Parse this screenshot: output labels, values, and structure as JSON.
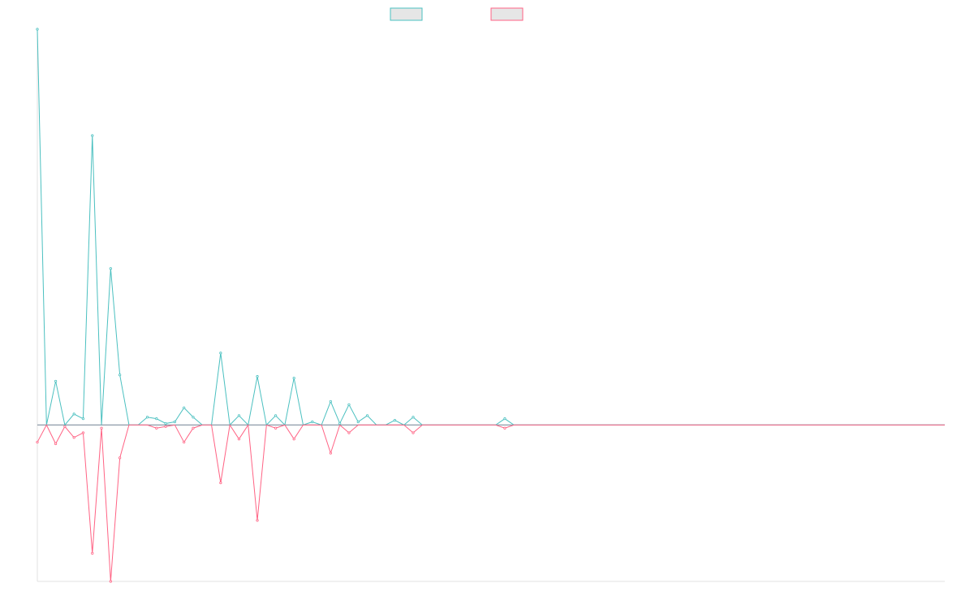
{
  "chart_data": {
    "type": "line",
    "title": "",
    "xlabel": "",
    "ylabel": "",
    "grid": false,
    "legend_placement": "top-center",
    "x_count": 100,
    "ylim": [
      -100,
      253
    ],
    "colors": {
      "series_a": "#4bc0c0",
      "series_b": "#ff6384",
      "zero_line": "#8e9aa8",
      "axis": "#e0e0e0",
      "legend_fill": "#e6e6e6"
    },
    "series": [
      {
        "key": "series_a",
        "label": "",
        "color": "#4bc0c0",
        "points": [
          [
            0,
            253
          ],
          [
            1,
            0
          ],
          [
            2,
            28
          ],
          [
            3,
            0
          ],
          [
            4,
            7
          ],
          [
            5,
            4
          ],
          [
            6,
            185
          ],
          [
            7,
            0
          ],
          [
            8,
            100
          ],
          [
            9,
            32
          ],
          [
            10,
            0
          ],
          [
            11,
            0
          ],
          [
            12,
            5
          ],
          [
            13,
            4
          ],
          [
            14,
            1
          ],
          [
            15,
            2
          ],
          [
            16,
            11
          ],
          [
            17,
            5
          ],
          [
            18,
            0
          ],
          [
            19,
            0
          ],
          [
            20,
            46
          ],
          [
            21,
            0
          ],
          [
            22,
            6
          ],
          [
            23,
            0
          ],
          [
            24,
            31
          ],
          [
            25,
            0
          ],
          [
            26,
            6
          ],
          [
            27,
            0
          ],
          [
            28,
            30
          ],
          [
            29,
            0
          ],
          [
            30,
            2
          ],
          [
            31,
            0
          ],
          [
            32,
            15
          ],
          [
            33,
            1
          ],
          [
            34,
            13
          ],
          [
            35,
            2
          ],
          [
            36,
            6
          ],
          [
            37,
            0
          ],
          [
            38,
            0
          ],
          [
            39,
            3
          ],
          [
            40,
            0
          ],
          [
            41,
            5
          ],
          [
            42,
            0
          ],
          [
            43,
            0
          ],
          [
            44,
            0
          ],
          [
            45,
            0
          ],
          [
            46,
            0
          ],
          [
            47,
            0
          ],
          [
            48,
            0
          ],
          [
            49,
            0
          ],
          [
            50,
            0
          ],
          [
            51,
            4
          ],
          [
            52,
            0
          ],
          [
            53,
            0
          ],
          [
            54,
            0
          ],
          [
            55,
            0
          ],
          [
            56,
            0
          ],
          [
            57,
            0
          ],
          [
            58,
            0
          ],
          [
            59,
            0
          ],
          [
            60,
            0
          ],
          [
            61,
            0
          ],
          [
            62,
            0
          ],
          [
            63,
            0
          ],
          [
            64,
            0
          ],
          [
            65,
            0
          ],
          [
            66,
            0
          ],
          [
            67,
            0
          ],
          [
            68,
            0
          ],
          [
            69,
            0
          ],
          [
            70,
            0
          ],
          [
            71,
            0
          ],
          [
            72,
            0
          ],
          [
            73,
            0
          ],
          [
            74,
            0
          ],
          [
            75,
            0
          ],
          [
            76,
            0
          ],
          [
            77,
            0
          ],
          [
            78,
            0
          ],
          [
            79,
            0
          ],
          [
            80,
            0
          ],
          [
            81,
            0
          ],
          [
            82,
            0
          ],
          [
            83,
            0
          ],
          [
            84,
            0
          ],
          [
            85,
            0
          ],
          [
            86,
            0
          ],
          [
            87,
            0
          ],
          [
            88,
            0
          ],
          [
            89,
            0
          ],
          [
            90,
            0
          ],
          [
            91,
            0
          ],
          [
            92,
            0
          ],
          [
            93,
            0
          ],
          [
            94,
            0
          ],
          [
            95,
            0
          ],
          [
            96,
            0
          ],
          [
            97,
            0
          ],
          [
            98,
            0
          ],
          [
            99,
            0
          ]
        ]
      },
      {
        "key": "series_b",
        "label": "",
        "color": "#ff6384",
        "points": [
          [
            0,
            -11
          ],
          [
            1,
            0
          ],
          [
            2,
            -12
          ],
          [
            3,
            -1
          ],
          [
            4,
            -8
          ],
          [
            5,
            -5
          ],
          [
            6,
            -82
          ],
          [
            7,
            -2
          ],
          [
            8,
            -100
          ],
          [
            9,
            -21
          ],
          [
            10,
            0
          ],
          [
            11,
            0
          ],
          [
            12,
            0
          ],
          [
            13,
            -2
          ],
          [
            14,
            -1
          ],
          [
            15,
            0
          ],
          [
            16,
            -11
          ],
          [
            17,
            -2
          ],
          [
            18,
            0
          ],
          [
            19,
            0
          ],
          [
            20,
            -37
          ],
          [
            21,
            0
          ],
          [
            22,
            -9
          ],
          [
            23,
            0
          ],
          [
            24,
            -61
          ],
          [
            25,
            0
          ],
          [
            26,
            -2
          ],
          [
            27,
            0
          ],
          [
            28,
            -9
          ],
          [
            29,
            0
          ],
          [
            30,
            0
          ],
          [
            31,
            0
          ],
          [
            32,
            -18
          ],
          [
            33,
            0
          ],
          [
            34,
            -5
          ],
          [
            35,
            0
          ],
          [
            36,
            0
          ],
          [
            37,
            0
          ],
          [
            38,
            0
          ],
          [
            39,
            0
          ],
          [
            40,
            0
          ],
          [
            41,
            -5
          ],
          [
            42,
            0
          ],
          [
            43,
            0
          ],
          [
            44,
            0
          ],
          [
            45,
            0
          ],
          [
            46,
            0
          ],
          [
            47,
            0
          ],
          [
            48,
            0
          ],
          [
            49,
            0
          ],
          [
            50,
            0
          ],
          [
            51,
            -2
          ],
          [
            52,
            0
          ],
          [
            53,
            0
          ],
          [
            54,
            0
          ],
          [
            55,
            0
          ],
          [
            56,
            0
          ],
          [
            57,
            0
          ],
          [
            58,
            0
          ],
          [
            59,
            0
          ],
          [
            60,
            0
          ],
          [
            61,
            0
          ],
          [
            62,
            0
          ],
          [
            63,
            0
          ],
          [
            64,
            0
          ],
          [
            65,
            0
          ],
          [
            66,
            0
          ],
          [
            67,
            0
          ],
          [
            68,
            0
          ],
          [
            69,
            0
          ],
          [
            70,
            0
          ],
          [
            71,
            0
          ],
          [
            72,
            0
          ],
          [
            73,
            0
          ],
          [
            74,
            0
          ],
          [
            75,
            0
          ],
          [
            76,
            0
          ],
          [
            77,
            0
          ],
          [
            78,
            0
          ],
          [
            79,
            0
          ],
          [
            80,
            0
          ],
          [
            81,
            0
          ],
          [
            82,
            0
          ],
          [
            83,
            0
          ],
          [
            84,
            0
          ],
          [
            85,
            0
          ],
          [
            86,
            0
          ],
          [
            87,
            0
          ],
          [
            88,
            0
          ],
          [
            89,
            0
          ],
          [
            90,
            0
          ],
          [
            91,
            0
          ],
          [
            92,
            0
          ],
          [
            93,
            0
          ],
          [
            94,
            0
          ],
          [
            95,
            0
          ],
          [
            96,
            0
          ],
          [
            97,
            0
          ],
          [
            98,
            0
          ],
          [
            99,
            0
          ]
        ]
      }
    ]
  }
}
